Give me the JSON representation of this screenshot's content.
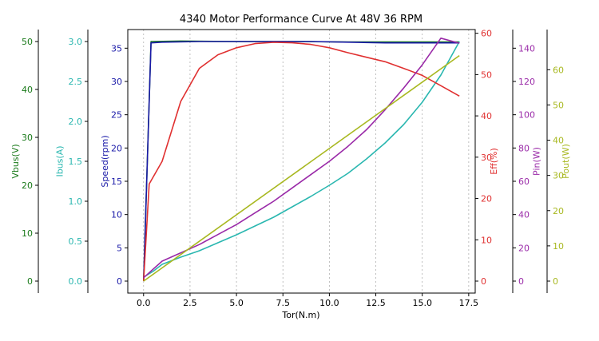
{
  "chart_data": {
    "type": "line",
    "title": "4340 Motor Performance Curve At 48V 36 RPM",
    "xlabel": "Tor(N.m)",
    "xlim": [
      -0.85,
      17.85
    ],
    "xticks": [
      0.0,
      2.5,
      5.0,
      7.5,
      10.0,
      12.5,
      15.0,
      17.5
    ],
    "xtick_labels": [
      "0.0",
      "2.5",
      "5.0",
      "7.5",
      "10.0",
      "12.5",
      "15.0",
      "17.5"
    ],
    "grid": "vertical-dashed",
    "axes": [
      {
        "id": "vbus",
        "label": "Vbus(V)",
        "color": "#1a7a1a",
        "side": "left",
        "lim": [
          -2.5,
          52.5
        ],
        "ticks": [
          0,
          10,
          20,
          30,
          40,
          50
        ],
        "tick_labels": [
          "0",
          "10",
          "20",
          "30",
          "40",
          "50"
        ]
      },
      {
        "id": "ibus",
        "label": "Ibus(A)",
        "color": "#2ab7b0",
        "side": "left",
        "lim": [
          -0.15,
          3.15
        ],
        "ticks": [
          0.0,
          0.5,
          1.0,
          1.5,
          2.0,
          2.5,
          3.0
        ],
        "tick_labels": [
          "0.0",
          "0.5",
          "1.0",
          "1.5",
          "2.0",
          "2.5",
          "3.0"
        ]
      },
      {
        "id": "speed",
        "label": "Speed(rpm)",
        "color": "#1a1aa8",
        "side": "left",
        "lim": [
          -1.8,
          37.8
        ],
        "ticks": [
          0,
          5,
          10,
          15,
          20,
          25,
          30,
          35
        ],
        "tick_labels": [
          "0",
          "5",
          "10",
          "15",
          "20",
          "25",
          "30",
          "35"
        ]
      },
      {
        "id": "eff",
        "label": "Eff(%)",
        "color": "#e03030",
        "side": "right",
        "lim": [
          -2.9,
          60.9
        ],
        "ticks": [
          0,
          10,
          20,
          30,
          40,
          50,
          60
        ],
        "tick_labels": [
          "0",
          "10",
          "20",
          "30",
          "40",
          "50",
          "60"
        ]
      },
      {
        "id": "pin",
        "label": "Pin(W)",
        "color": "#9a2aa8",
        "side": "right",
        "lim": [
          -7.2,
          151.2
        ],
        "ticks": [
          0,
          20,
          40,
          60,
          80,
          100,
          120,
          140
        ],
        "tick_labels": [
          "0",
          "20",
          "40",
          "60",
          "80",
          "100",
          "120",
          "140"
        ]
      },
      {
        "id": "pout",
        "label": "Pout(W)",
        "color": "#a8b820",
        "side": "right",
        "lim": [
          -3.4,
          71.4
        ],
        "ticks": [
          0,
          10,
          20,
          30,
          40,
          50,
          60
        ],
        "tick_labels": [
          "0",
          "10",
          "20",
          "30",
          "40",
          "50",
          "60"
        ]
      }
    ],
    "series": [
      {
        "axis": "vbus",
        "color": "#1a7a1a",
        "x": [
          0,
          0.4,
          2,
          5,
          8,
          11,
          14,
          17
        ],
        "y": [
          0,
          50,
          50.1,
          50,
          50,
          49.9,
          49.9,
          49.9
        ]
      },
      {
        "axis": "ibus",
        "color": "#2ab7b0",
        "x": [
          0,
          0.5,
          1,
          2,
          3,
          4,
          5,
          6,
          7,
          8,
          9,
          10,
          11,
          12,
          13,
          14,
          15,
          16,
          17
        ],
        "y": [
          0.05,
          0.12,
          0.21,
          0.3,
          0.38,
          0.48,
          0.58,
          0.69,
          0.8,
          0.93,
          1.06,
          1.2,
          1.35,
          1.53,
          1.73,
          1.96,
          2.24,
          2.58,
          3.0
        ]
      },
      {
        "axis": "speed",
        "color": "#1a1aa8",
        "x": [
          0,
          0.4,
          1,
          3,
          5,
          7,
          9,
          11,
          13,
          15,
          17
        ],
        "y": [
          0,
          35.8,
          35.9,
          36,
          36,
          36,
          36,
          35.9,
          35.8,
          35.8,
          35.8
        ]
      },
      {
        "axis": "eff",
        "color": "#e03030",
        "x": [
          0,
          0.3,
          1,
          2,
          3,
          4,
          5,
          6,
          7,
          8,
          9,
          10,
          11,
          12,
          13,
          14,
          15,
          16,
          17
        ],
        "y": [
          0,
          23.5,
          29,
          43.5,
          51.5,
          54.8,
          56.5,
          57.5,
          57.8,
          57.7,
          57.3,
          56.5,
          55.3,
          54.2,
          53.1,
          51.5,
          49.8,
          47.3,
          44.8
        ]
      },
      {
        "axis": "pin",
        "color": "#9a2aa8",
        "x": [
          0,
          0.5,
          1,
          2,
          3,
          4,
          5,
          6,
          7,
          8,
          9,
          10,
          11,
          12,
          13,
          14,
          15,
          16,
          17
        ],
        "y": [
          2,
          7,
          12,
          17,
          22,
          28,
          34,
          41,
          48,
          56,
          64,
          72,
          81,
          91,
          103,
          116,
          130,
          146,
          143
        ]
      },
      {
        "axis": "pout",
        "color": "#a8b820",
        "x": [
          0,
          17
        ],
        "y": [
          0,
          64
        ]
      }
    ]
  }
}
